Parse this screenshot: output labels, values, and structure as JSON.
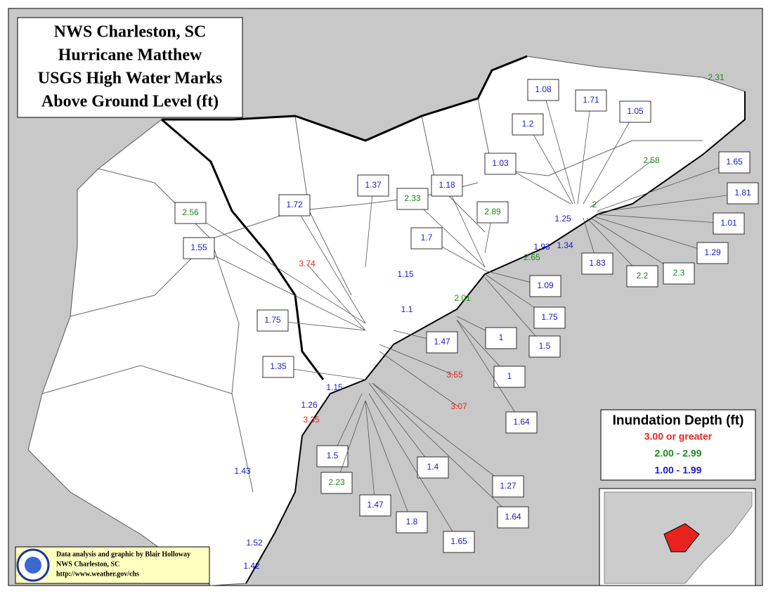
{
  "title": [
    "NWS Charleston, SC",
    "Hurricane Matthew",
    "USGS High Water Marks",
    "Above Ground Level (ft)"
  ],
  "legend": {
    "title": "Inundation Depth (ft)",
    "items": [
      {
        "label": "3.00 or greater",
        "color": "#e8231e"
      },
      {
        "label": "2.00 - 2.99",
        "color": "#1e8a1e"
      },
      {
        "label": "1.00 - 1.99",
        "color": "#1a1ad0"
      }
    ]
  },
  "credit": [
    "Data analysis and graphic by Blair Holloway",
    "NWS Charleston, SC",
    "http://www.weather.gov/chs"
  ],
  "marks": [
    {
      "value": 1.08,
      "color": "#1a1ad0"
    },
    {
      "value": 1.71,
      "color": "#1a1ad0"
    },
    {
      "value": 1.05,
      "color": "#1a1ad0"
    },
    {
      "value": 1.2,
      "color": "#1a1ad0"
    },
    {
      "value": 1.03,
      "color": "#1a1ad0"
    },
    {
      "value": 2.58,
      "color": "#1e8a1e"
    },
    {
      "value": 1.65,
      "color": "#1a1ad0"
    },
    {
      "value": 1.81,
      "color": "#1a1ad0"
    },
    {
      "value": 1.01,
      "color": "#1a1ad0"
    },
    {
      "value": 1.29,
      "color": "#1a1ad0"
    },
    {
      "value": 2.3,
      "color": "#1e8a1e"
    },
    {
      "value": 2.2,
      "color": "#1e8a1e"
    },
    {
      "value": 1.83,
      "color": "#1a1ad0"
    },
    {
      "value": 1.25,
      "color": "#1a1ad0"
    },
    {
      "value": 2,
      "color": "#1e8a1e"
    },
    {
      "value": 2.31,
      "color": "#1e8a1e"
    },
    {
      "value": 1.93,
      "color": "#1a1ad0"
    },
    {
      "value": 1.34,
      "color": "#1a1ad0"
    },
    {
      "value": 2.65,
      "color": "#1e8a1e"
    },
    {
      "value": 2.89,
      "color": "#1e8a1e"
    },
    {
      "value": 1.18,
      "color": "#1a1ad0"
    },
    {
      "value": 2.33,
      "color": "#1e8a1e"
    },
    {
      "value": 1.37,
      "color": "#1a1ad0"
    },
    {
      "value": 1.7,
      "color": "#1a1ad0"
    },
    {
      "value": 1.72,
      "color": "#1a1ad0"
    },
    {
      "value": 2.56,
      "color": "#1e8a1e"
    },
    {
      "value": 1.55,
      "color": "#1a1ad0"
    },
    {
      "value": 3.74,
      "color": "#e8231e"
    },
    {
      "value": 1.15,
      "color": "#1a1ad0"
    },
    {
      "value": 1.1,
      "color": "#1a1ad0"
    },
    {
      "value": 2.01,
      "color": "#1e8a1e"
    },
    {
      "value": 1.09,
      "color": "#1a1ad0"
    },
    {
      "value": 1.75,
      "color": "#1a1ad0"
    },
    {
      "value": 1,
      "color": "#1a1ad0"
    },
    {
      "value": 1.5,
      "color": "#1a1ad0"
    },
    {
      "value": 1.47,
      "color": "#1a1ad0"
    },
    {
      "value": 1,
      "color": "#1a1ad0"
    },
    {
      "value": 3.55,
      "color": "#e8231e"
    },
    {
      "value": 3.07,
      "color": "#e8231e"
    },
    {
      "value": 1.64,
      "color": "#1a1ad0"
    },
    {
      "value": 1.75,
      "color": "#1a1ad0"
    },
    {
      "value": 1.35,
      "color": "#1a1ad0"
    },
    {
      "value": 1.15,
      "color": "#1a1ad0"
    },
    {
      "value": 1.26,
      "color": "#1a1ad0"
    },
    {
      "value": 3.35,
      "color": "#e8231e"
    },
    {
      "value": 1.5,
      "color": "#1a1ad0"
    },
    {
      "value": 2.23,
      "color": "#1e8a1e"
    },
    {
      "value": 1.4,
      "color": "#1a1ad0"
    },
    {
      "value": 1.27,
      "color": "#1a1ad0"
    },
    {
      "value": 1.47,
      "color": "#1a1ad0"
    },
    {
      "value": 1.64,
      "color": "#1a1ad0"
    },
    {
      "value": 1.8,
      "color": "#1a1ad0"
    },
    {
      "value": 1.65,
      "color": "#1a1ad0"
    },
    {
      "value": 1.43,
      "color": "#1a1ad0"
    },
    {
      "value": 1.52,
      "color": "#1a1ad0"
    },
    {
      "value": 1.42,
      "color": "#1a1ad0"
    }
  ]
}
